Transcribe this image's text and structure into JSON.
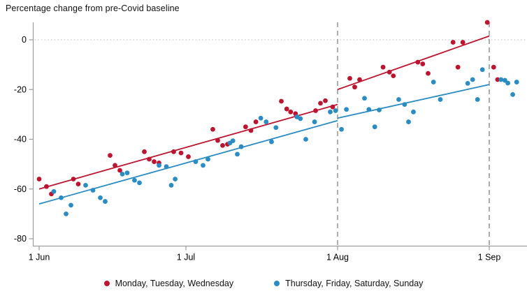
{
  "title": "Percentage change from pre-Covid baseline",
  "colors": {
    "red": "#bd1530",
    "blue": "#2a8cc3",
    "dashed_reference": "#8c8c8c",
    "axis": "#9c9c9c",
    "zero_gridline": "#c6c6c6",
    "text": "#000000"
  },
  "legend": [
    {
      "label": "Monday, Tuesday, Wednesday",
      "color_key": "red"
    },
    {
      "label": "Thursday, Friday, Saturday, Sunday",
      "color_key": "blue"
    }
  ],
  "chart_data": {
    "type": "scatter",
    "title": "Percentage change from pre-Covid baseline",
    "x_unit": "days_from_1_jun",
    "x_ticks": [
      {
        "day": 0,
        "label": "1 Jun"
      },
      {
        "day": 30,
        "label": "1 Jul"
      },
      {
        "day": 61,
        "label": "1 Aug"
      },
      {
        "day": 92,
        "label": "1 Sep"
      }
    ],
    "y_ticks": [
      0,
      -20,
      -40,
      -60,
      -80
    ],
    "ylim": [
      -80,
      8
    ],
    "xlim": [
      -1.3,
      99.7
    ],
    "grid": "zero-line-only",
    "legend_position": "bottom-center",
    "reference_lines": {
      "vertical_dashed_days": [
        61,
        92
      ],
      "horizontal_dotted_value": 0
    },
    "series": [
      {
        "name": "Monday, Tuesday, Wednesday",
        "color": "#bd1530",
        "points": [
          [
            0,
            -56
          ],
          [
            1.5,
            -59
          ],
          [
            2.5,
            -62
          ],
          [
            7,
            -56
          ],
          [
            8,
            -58
          ],
          [
            14.5,
            -46.5
          ],
          [
            15.5,
            -50.5
          ],
          [
            16.5,
            -52.5
          ],
          [
            21.5,
            -45
          ],
          [
            22.5,
            -48
          ],
          [
            23.5,
            -49
          ],
          [
            24.5,
            -49.5
          ],
          [
            27.5,
            -45
          ],
          [
            29,
            -45.5
          ],
          [
            30.5,
            -47
          ],
          [
            35.5,
            -36
          ],
          [
            36.5,
            -40.5
          ],
          [
            37.5,
            -42.5
          ],
          [
            38.5,
            -42
          ],
          [
            42.2,
            -35
          ],
          [
            43.3,
            -36.5
          ],
          [
            44.3,
            -33
          ],
          [
            49.5,
            -24.7
          ],
          [
            50.6,
            -27.8
          ],
          [
            51.4,
            -29
          ],
          [
            52.4,
            -29.7
          ],
          [
            56.5,
            -28.5
          ],
          [
            57.5,
            -25.5
          ],
          [
            58.5,
            -24.5
          ],
          [
            60,
            -27
          ],
          [
            63.5,
            -15.5
          ],
          [
            64.5,
            -19
          ],
          [
            65.5,
            -16
          ],
          [
            70.3,
            -11
          ],
          [
            71.6,
            -13
          ],
          [
            72.4,
            -14.5
          ],
          [
            77.4,
            -9
          ],
          [
            78.4,
            -9.7
          ],
          [
            79.5,
            -13.5
          ],
          [
            84.6,
            -1
          ],
          [
            85.6,
            -11
          ],
          [
            86.6,
            -1
          ],
          [
            91.6,
            7
          ],
          [
            92.9,
            -11
          ],
          [
            93.7,
            -16
          ]
        ],
        "trend_segments": [
          [
            [
              0,
              -60
            ],
            [
              61,
              -26
            ]
          ],
          [
            [
              61,
              -20
            ],
            [
              92,
              1.5
            ]
          ]
        ]
      },
      {
        "name": "Thursday, Friday, Saturday, Sunday",
        "color": "#2a8cc3",
        "points": [
          [
            3,
            -61
          ],
          [
            4.5,
            -63.5
          ],
          [
            5.5,
            -70
          ],
          [
            6.5,
            -66.5
          ],
          [
            9.5,
            -58.5
          ],
          [
            11,
            -60.5
          ],
          [
            12.5,
            -63.5
          ],
          [
            13.5,
            -65
          ],
          [
            17,
            -54
          ],
          [
            18,
            -53.5
          ],
          [
            19.5,
            -56.5
          ],
          [
            20.5,
            -57.5
          ],
          [
            24.5,
            -50.5
          ],
          [
            26,
            -51
          ],
          [
            27,
            -58.5
          ],
          [
            27.8,
            -56
          ],
          [
            32,
            -49
          ],
          [
            33.5,
            -50.5
          ],
          [
            34.5,
            -48
          ],
          [
            39,
            -41.5
          ],
          [
            39.6,
            -40.6
          ],
          [
            40.5,
            -46
          ],
          [
            41.3,
            -43
          ],
          [
            45.3,
            -31.5
          ],
          [
            46.4,
            -33
          ],
          [
            47.5,
            -41
          ],
          [
            48.4,
            -35.3
          ],
          [
            52.7,
            -31
          ],
          [
            53.4,
            -31.7
          ],
          [
            54.5,
            -40
          ],
          [
            56.3,
            -33
          ],
          [
            59.5,
            -29
          ],
          [
            60.6,
            -28.5
          ],
          [
            61.8,
            -36
          ],
          [
            62.8,
            -28
          ],
          [
            66.5,
            -23.5
          ],
          [
            67.4,
            -28
          ],
          [
            68.6,
            -35
          ],
          [
            69.5,
            -28.2
          ],
          [
            73.5,
            -24
          ],
          [
            74.7,
            -26
          ],
          [
            75.5,
            -33
          ],
          [
            76.5,
            -29
          ],
          [
            80.6,
            -17
          ],
          [
            82,
            -24
          ],
          [
            87.6,
            -17.5
          ],
          [
            88.6,
            -16
          ],
          [
            89.6,
            -24
          ],
          [
            90.6,
            -12
          ],
          [
            94.4,
            -16
          ],
          [
            95.2,
            -16.3
          ],
          [
            95.8,
            -17.4
          ],
          [
            96.8,
            -22
          ],
          [
            97.6,
            -17
          ]
        ],
        "trend_segments": [
          [
            [
              0,
              -66
            ],
            [
              61,
              -32.5
            ]
          ],
          [
            [
              61,
              -31.5
            ],
            [
              92,
              -18
            ]
          ]
        ]
      }
    ]
  }
}
